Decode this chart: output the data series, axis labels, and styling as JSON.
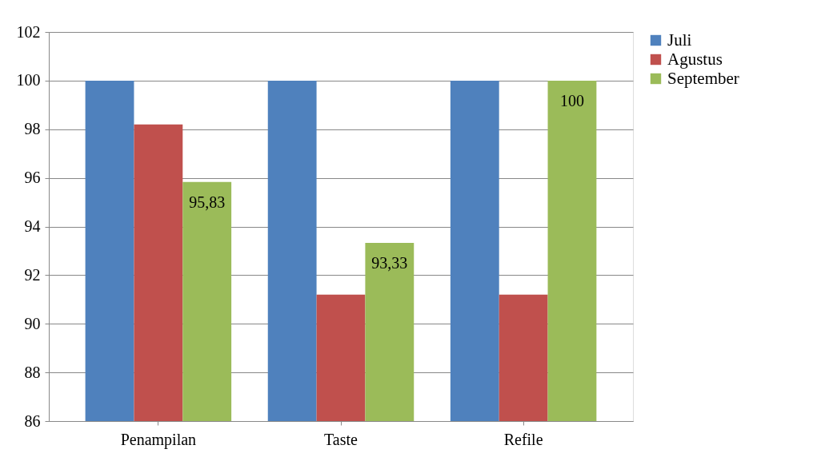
{
  "chart_data": {
    "type": "bar",
    "categories": [
      "Penampilan",
      "Taste",
      "Refile"
    ],
    "series": [
      {
        "name": "Juli",
        "color": "#4f81bd",
        "values": [
          100,
          100,
          100
        ]
      },
      {
        "name": "Agustus",
        "color": "#c0504d",
        "values": [
          98.2,
          91.2,
          91.2
        ]
      },
      {
        "name": "September",
        "color": "#9bbb59",
        "values": [
          95.83,
          93.33,
          100
        ],
        "value_labels": [
          "95,83",
          "93,33",
          "100"
        ]
      }
    ],
    "ylim": [
      86,
      102
    ],
    "yticks": [
      86,
      88,
      90,
      92,
      94,
      96,
      98,
      100,
      102
    ],
    "grid": "y",
    "legend": "right"
  }
}
